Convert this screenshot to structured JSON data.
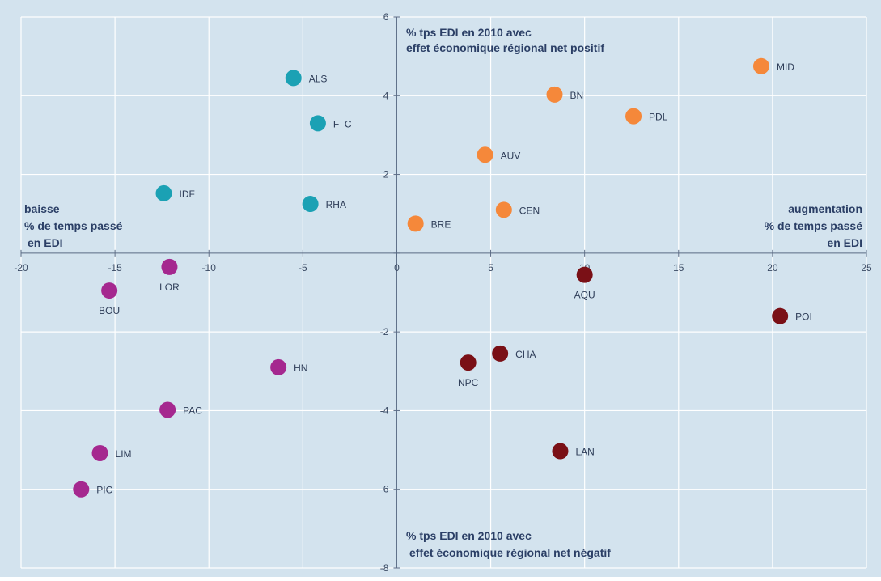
{
  "chart_data": {
    "type": "scatter",
    "title": "",
    "xlabel": "",
    "ylabel": "",
    "xlim": [
      -20,
      25
    ],
    "ylim": [
      -8,
      6
    ],
    "x_ticks": [
      "-20",
      "-15",
      "-10",
      "-5",
      "0",
      "5",
      "10",
      "15",
      "20",
      "25"
    ],
    "y_ticks": [
      "6",
      "4",
      "2",
      "0",
      "-2",
      "-4",
      "-6",
      "-8"
    ],
    "grid": true,
    "colors": {
      "background": "#d3e3ee",
      "grid": "#ffffff",
      "teal": "#1ba1b4",
      "orange": "#f5883a",
      "dark_red": "#7a1016",
      "magenta": "#a5288f"
    },
    "annotations": {
      "top_line1": "% tps EDI en 2010 avec",
      "top_line2": "effet économique régional net positif",
      "bottom_line1": "% tps EDI en 2010 avec",
      "bottom_line2": "effet économique régional net négatif",
      "left_line1": "baisse",
      "left_line2": "% de temps passé",
      "left_line3": "en EDI",
      "right_line1": "augmentation",
      "right_line2": "% de temps passé",
      "right_line3": "en EDI"
    },
    "points": [
      {
        "label": "ALS",
        "x": -5.5,
        "y": 4.45,
        "group": "teal",
        "label_pos": "right"
      },
      {
        "label": "F_C",
        "x": -4.2,
        "y": 3.3,
        "group": "teal",
        "label_pos": "right"
      },
      {
        "label": "IDF",
        "x": -12.4,
        "y": 1.52,
        "group": "teal",
        "label_pos": "right"
      },
      {
        "label": "RHA",
        "x": -4.6,
        "y": 1.25,
        "group": "teal",
        "label_pos": "right"
      },
      {
        "label": "MID",
        "x": 19.4,
        "y": 4.75,
        "group": "orange",
        "label_pos": "right"
      },
      {
        "label": "BN",
        "x": 8.4,
        "y": 4.03,
        "group": "orange",
        "label_pos": "right"
      },
      {
        "label": "PDL",
        "x": 12.6,
        "y": 3.48,
        "group": "orange",
        "label_pos": "right"
      },
      {
        "label": "AUV",
        "x": 4.7,
        "y": 2.5,
        "group": "orange",
        "label_pos": "right"
      },
      {
        "label": "CEN",
        "x": 5.7,
        "y": 1.1,
        "group": "orange",
        "label_pos": "right"
      },
      {
        "label": "BRE",
        "x": 1.0,
        "y": 0.75,
        "group": "orange",
        "label_pos": "right"
      },
      {
        "label": "AQU",
        "x": 10.0,
        "y": -0.55,
        "group": "dark_red",
        "label_pos": "below"
      },
      {
        "label": "POI",
        "x": 20.4,
        "y": -1.6,
        "group": "dark_red",
        "label_pos": "right"
      },
      {
        "label": "CHA",
        "x": 5.5,
        "y": -2.55,
        "group": "dark_red",
        "label_pos": "right"
      },
      {
        "label": "NPC",
        "x": 3.8,
        "y": -2.78,
        "group": "dark_red",
        "label_pos": "below"
      },
      {
        "label": "LAN",
        "x": 8.7,
        "y": -5.03,
        "group": "dark_red",
        "label_pos": "right"
      },
      {
        "label": "LOR",
        "x": -12.1,
        "y": -0.35,
        "group": "magenta",
        "label_pos": "below"
      },
      {
        "label": "BOU",
        "x": -15.3,
        "y": -0.95,
        "group": "magenta",
        "label_pos": "below"
      },
      {
        "label": "HN",
        "x": -6.3,
        "y": -2.9,
        "group": "magenta",
        "label_pos": "right"
      },
      {
        "label": "PAC",
        "x": -12.2,
        "y": -3.98,
        "group": "magenta",
        "label_pos": "right"
      },
      {
        "label": "LIM",
        "x": -15.8,
        "y": -5.08,
        "group": "magenta",
        "label_pos": "right"
      },
      {
        "label": "PIC",
        "x": -16.8,
        "y": -6.0,
        "group": "magenta",
        "label_pos": "right"
      }
    ]
  }
}
